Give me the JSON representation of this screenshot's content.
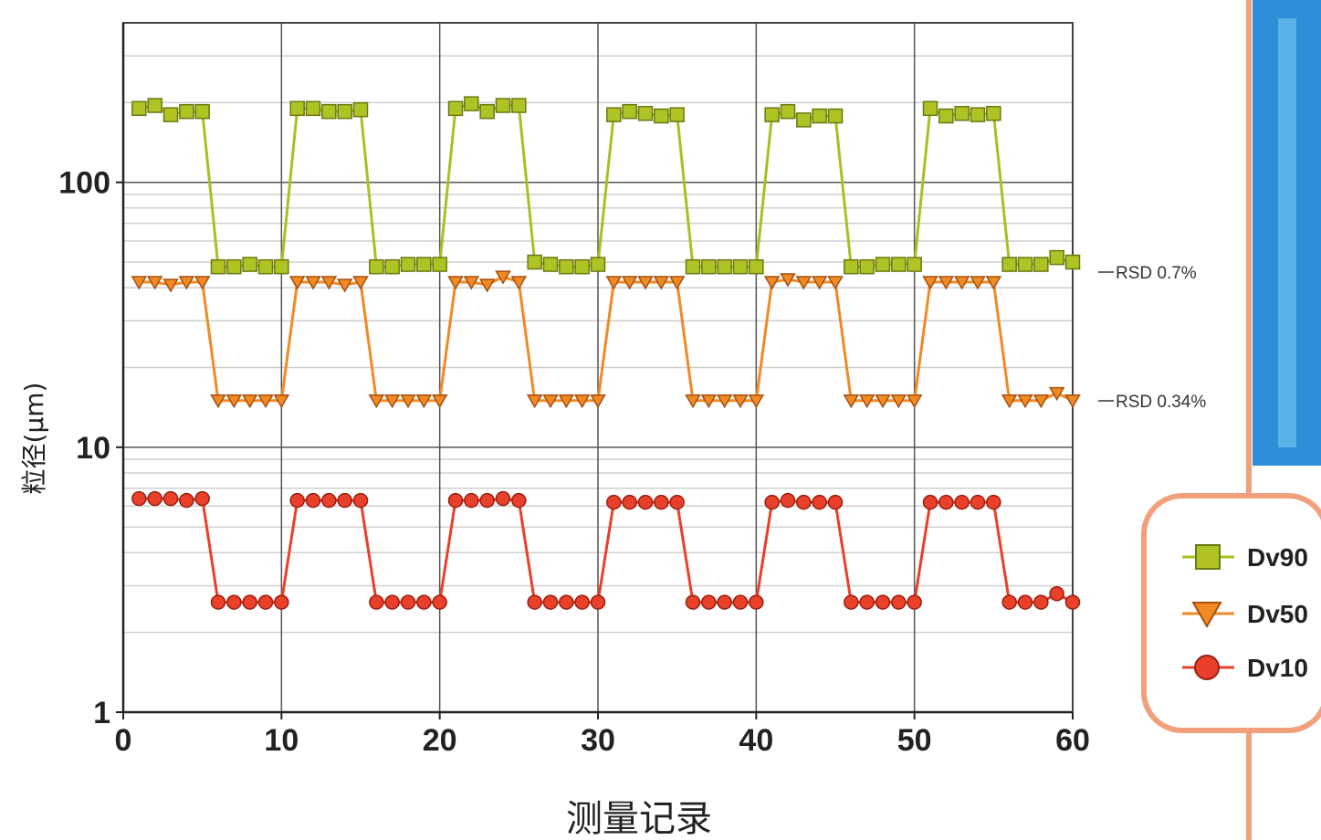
{
  "chart_data": {
    "type": "line",
    "xlabel": "测量记录",
    "ylabel": "粒径(μm)",
    "yscale": "log",
    "xlim": [
      0,
      60
    ],
    "ylim": [
      1,
      400
    ],
    "xticks": [
      "0",
      "10",
      "20",
      "30",
      "40",
      "50",
      "60"
    ],
    "yticks": [
      "1",
      "10",
      "100"
    ],
    "grid": true,
    "legend_position": "right",
    "x": [
      1,
      2,
      3,
      4,
      5,
      6,
      7,
      8,
      9,
      10,
      11,
      12,
      13,
      14,
      15,
      16,
      17,
      18,
      19,
      20,
      21,
      22,
      23,
      24,
      25,
      26,
      27,
      28,
      29,
      30,
      31,
      32,
      33,
      34,
      35,
      36,
      37,
      38,
      39,
      40,
      41,
      42,
      43,
      44,
      45,
      46,
      47,
      48,
      49,
      50,
      51,
      52,
      53,
      54,
      55,
      56,
      57,
      58,
      59,
      60
    ],
    "series": [
      {
        "name": "Dv90",
        "marker": "square",
        "color": "#a8c022",
        "values": [
          190,
          195,
          180,
          185,
          185,
          48,
          48,
          49,
          48,
          48,
          190,
          190,
          185,
          185,
          188,
          48,
          48,
          49,
          49,
          49,
          190,
          198,
          185,
          195,
          195,
          50,
          49,
          48,
          48,
          49,
          180,
          185,
          182,
          178,
          180,
          48,
          48,
          48,
          48,
          48,
          180,
          185,
          172,
          178,
          178,
          48,
          48,
          49,
          49,
          49,
          190,
          178,
          182,
          180,
          182,
          49,
          49,
          49,
          52,
          50
        ],
        "annotation": "RSD 0.7%"
      },
      {
        "name": "Dv50",
        "marker": "triangle-down",
        "color": "#f08a24",
        "values": [
          42,
          42,
          41,
          42,
          42,
          15,
          15,
          15,
          15,
          15,
          42,
          42,
          42,
          41,
          42,
          15,
          15,
          15,
          15,
          15,
          42,
          42,
          41,
          44,
          42,
          15,
          15,
          15,
          15,
          15,
          42,
          42,
          42,
          42,
          42,
          15,
          15,
          15,
          15,
          15,
          42,
          43,
          42,
          42,
          42,
          15,
          15,
          15,
          15,
          15,
          42,
          42,
          42,
          42,
          42,
          15,
          15,
          15,
          16,
          15
        ],
        "annotation": "RSD 0.34%"
      },
      {
        "name": "Dv10",
        "marker": "circle",
        "color": "#e8402a",
        "values": [
          6.4,
          6.4,
          6.4,
          6.3,
          6.4,
          2.6,
          2.6,
          2.6,
          2.6,
          2.6,
          6.3,
          6.3,
          6.3,
          6.3,
          6.3,
          2.6,
          2.6,
          2.6,
          2.6,
          2.6,
          6.3,
          6.3,
          6.3,
          6.4,
          6.3,
          2.6,
          2.6,
          2.6,
          2.6,
          2.6,
          6.2,
          6.2,
          6.2,
          6.2,
          6.2,
          2.6,
          2.6,
          2.6,
          2.6,
          2.6,
          6.2,
          6.3,
          6.2,
          6.2,
          6.2,
          2.6,
          2.6,
          2.6,
          2.6,
          2.6,
          6.2,
          6.2,
          6.2,
          6.2,
          6.2,
          2.6,
          2.6,
          2.6,
          2.8,
          2.6
        ]
      }
    ]
  }
}
